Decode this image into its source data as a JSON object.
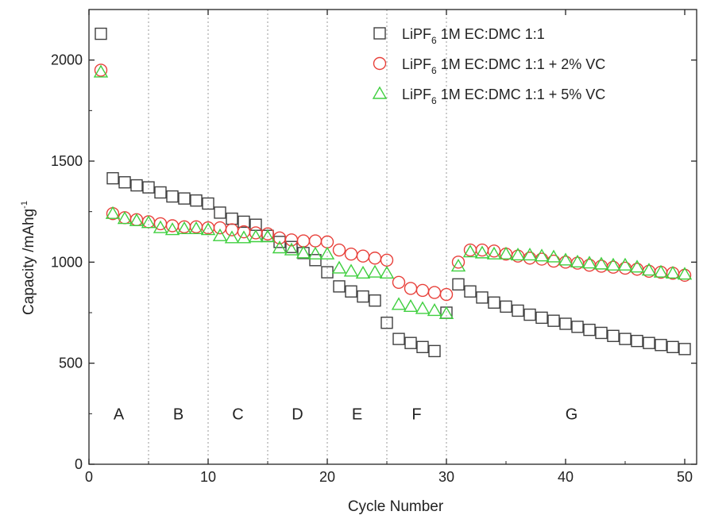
{
  "chart_data": {
    "type": "scatter",
    "xlabel": "Cycle Number",
    "ylabel": {
      "text": "Capacity /mAhg",
      "superscript": "-1"
    },
    "xlim": [
      0,
      51
    ],
    "ylim": [
      0,
      2250
    ],
    "xticks": [
      "0",
      "10",
      "20",
      "30",
      "40",
      "50"
    ],
    "yticks": [
      "0",
      "500",
      "1000",
      "1500",
      "2000"
    ],
    "grid": false,
    "legend_position": "top-right",
    "section_dividers": [
      5,
      10,
      15,
      20,
      25,
      30
    ],
    "regions": [
      {
        "label": "A",
        "x": 2.5
      },
      {
        "label": "B",
        "x": 7.5
      },
      {
        "label": "C",
        "x": 12.5
      },
      {
        "label": "D",
        "x": 17.5
      },
      {
        "label": "E",
        "x": 22.5
      },
      {
        "label": "F",
        "x": 27.5
      },
      {
        "label": "G",
        "x": 40.5
      }
    ],
    "region_label_y": 250,
    "series": [
      {
        "name": "LiPF6 1M EC:DMC 1:1",
        "legend": {
          "prefix": "LiPF",
          "sub": "6",
          "suffix": " 1M EC:DMC 1:1"
        },
        "marker": "square",
        "color": "#404040",
        "x": [
          1,
          2,
          3,
          4,
          5,
          6,
          7,
          8,
          9,
          10,
          11,
          12,
          13,
          14,
          15,
          16,
          17,
          18,
          19,
          20,
          21,
          22,
          23,
          24,
          25,
          26,
          27,
          28,
          29,
          30,
          31,
          32,
          33,
          34,
          35,
          36,
          37,
          38,
          39,
          40,
          41,
          42,
          43,
          44,
          45,
          46,
          47,
          48,
          49,
          50
        ],
        "y": [
          2130,
          1415,
          1395,
          1380,
          1370,
          1345,
          1325,
          1315,
          1305,
          1290,
          1245,
          1215,
          1200,
          1185,
          1130,
          1100,
          1075,
          1045,
          1010,
          950,
          880,
          855,
          830,
          810,
          700,
          620,
          600,
          580,
          560,
          750,
          890,
          855,
          825,
          800,
          780,
          760,
          740,
          725,
          710,
          695,
          680,
          665,
          650,
          635,
          620,
          610,
          600,
          590,
          580,
          570
        ]
      },
      {
        "name": "LiPF6 1M EC:DMC 1:1 + 2% VC",
        "legend": {
          "prefix": "LiPF",
          "sub": "6",
          "suffix": " 1M EC:DMC 1:1 + 2% VC"
        },
        "marker": "circle",
        "color": "#e8403a",
        "x": [
          1,
          2,
          3,
          4,
          5,
          6,
          7,
          8,
          9,
          10,
          11,
          12,
          13,
          14,
          15,
          16,
          17,
          18,
          19,
          20,
          21,
          22,
          23,
          24,
          25,
          26,
          27,
          28,
          29,
          30,
          31,
          32,
          33,
          34,
          35,
          36,
          37,
          38,
          39,
          40,
          41,
          42,
          43,
          44,
          45,
          46,
          47,
          48,
          49,
          50
        ],
        "y": [
          1950,
          1240,
          1220,
          1210,
          1200,
          1190,
          1180,
          1175,
          1175,
          1170,
          1170,
          1160,
          1150,
          1145,
          1140,
          1120,
          1110,
          1105,
          1105,
          1100,
          1060,
          1040,
          1030,
          1020,
          1010,
          900,
          870,
          860,
          850,
          840,
          1000,
          1060,
          1060,
          1055,
          1040,
          1030,
          1020,
          1015,
          1005,
          1000,
          995,
          985,
          980,
          975,
          970,
          965,
          955,
          950,
          945,
          935
        ]
      },
      {
        "name": "LiPF6 1M EC:DMC 1:1 + 5% VC",
        "legend": {
          "prefix": "LiPF",
          "sub": "6",
          "suffix": " 1M EC:DMC 1:1 + 5% VC"
        },
        "marker": "triangle",
        "color": "#3fcf3f",
        "x": [
          1,
          2,
          3,
          4,
          5,
          6,
          7,
          8,
          9,
          10,
          11,
          12,
          13,
          14,
          15,
          16,
          17,
          18,
          19,
          20,
          21,
          22,
          23,
          24,
          25,
          26,
          27,
          28,
          29,
          30,
          31,
          32,
          33,
          34,
          35,
          36,
          37,
          38,
          39,
          40,
          41,
          42,
          43,
          44,
          45,
          46,
          47,
          48,
          49,
          50
        ],
        "y": [
          1940,
          1240,
          1215,
          1205,
          1195,
          1170,
          1160,
          1165,
          1165,
          1160,
          1130,
          1120,
          1120,
          1125,
          1125,
          1070,
          1060,
          1045,
          1040,
          1040,
          970,
          955,
          945,
          950,
          945,
          790,
          780,
          770,
          760,
          745,
          980,
          1050,
          1045,
          1040,
          1040,
          1035,
          1035,
          1030,
          1025,
          1010,
          1000,
          995,
          990,
          985,
          985,
          975,
          960,
          950,
          945,
          940
        ]
      }
    ]
  }
}
